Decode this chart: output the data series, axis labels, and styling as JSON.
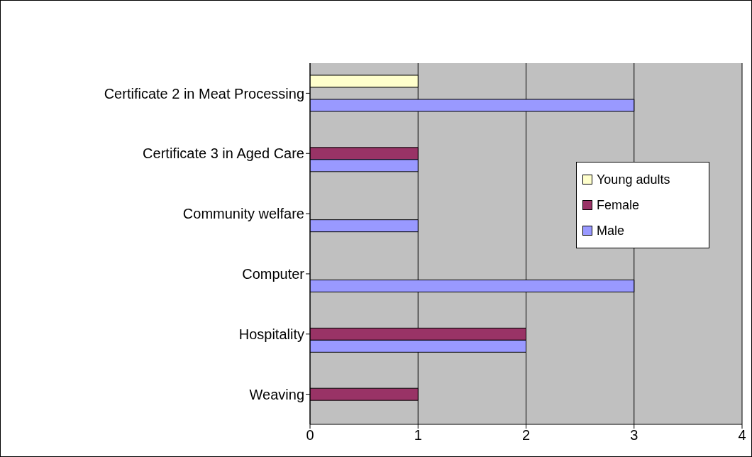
{
  "chart_data": {
    "type": "bar",
    "orientation": "horizontal",
    "categories": [
      "Certificate 2 in Meat Processing",
      "Certificate 3 in Aged Care",
      "Community welfare",
      "Computer",
      "Hospitality",
      "Weaving"
    ],
    "series": [
      {
        "name": "Young adults",
        "color": "#ffffcc",
        "values": [
          1,
          null,
          null,
          null,
          null,
          null
        ]
      },
      {
        "name": "Female",
        "color": "#993366",
        "values": [
          null,
          1,
          null,
          null,
          2,
          1
        ]
      },
      {
        "name": "Male",
        "color": "#9999ff",
        "values": [
          3,
          1,
          1,
          3,
          2,
          null
        ]
      }
    ],
    "xlim": [
      0,
      4
    ],
    "xticks": [
      0,
      1,
      2,
      3,
      4
    ],
    "grid": "x",
    "legend": "right"
  }
}
